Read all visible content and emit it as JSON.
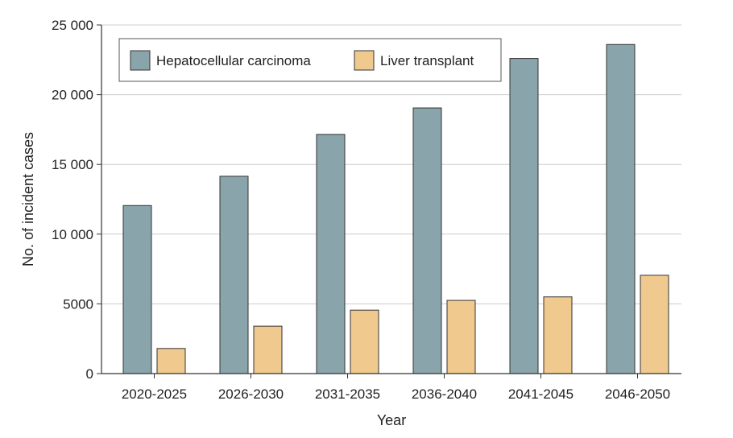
{
  "chart_data": {
    "type": "bar",
    "categories": [
      "2020-2025",
      "2026-2030",
      "2031-2035",
      "2036-2040",
      "2041-2045",
      "2046-2050"
    ],
    "series": [
      {
        "name": "Hepatocellular carcinoma",
        "color": "#8aa4ab",
        "values": [
          12050,
          14150,
          17150,
          19050,
          22600,
          23600
        ]
      },
      {
        "name": "Liver transplant",
        "color": "#f0c98e",
        "values": [
          1800,
          3400,
          4550,
          5250,
          5500,
          7050
        ]
      }
    ],
    "xlabel": "Year",
    "ylabel": "No. of incident cases",
    "ylim": [
      0,
      25000
    ],
    "yticks": [
      0,
      5000,
      10000,
      15000,
      20000,
      25000
    ],
    "ytick_labels": [
      "0",
      "5000",
      "10 000",
      "15 000",
      "20 000",
      "25 000"
    ],
    "grid": true,
    "legend_position": "top-left"
  }
}
